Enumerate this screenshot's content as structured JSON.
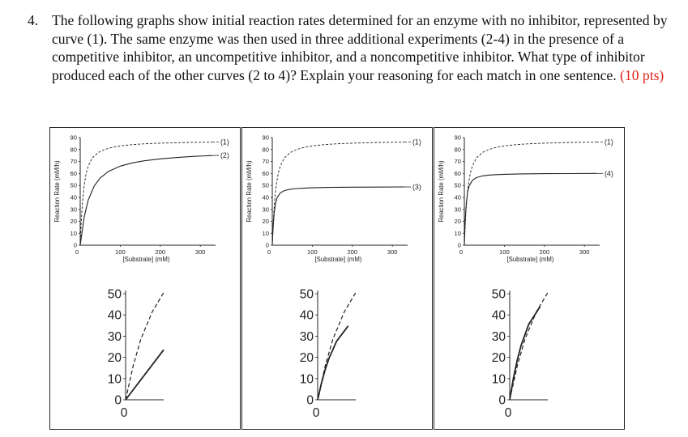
{
  "question": {
    "number": "4.",
    "text": "The following graphs show initial reaction rates determined for an enzyme with no inhibitor, represented by curve (1). The same enzyme was then used in three additional experiments (2-4) in the presence of a competitive inhibitor, an uncompetitive inhibitor, and a noncompetitive inhibitor. What type of inhibitor produced each of the other curves (2 to 4)? Explain your reasoning for each match in one sentence.",
    "points": "(10 pts)",
    "accent_color": "#e0241b"
  },
  "chart_data": [
    {
      "type": "line",
      "xlabel": "[Substrate] (mM)",
      "ylabel": "Reaction Rate (mM/h)",
      "xlim": [
        0,
        330
      ],
      "ylim": [
        0,
        90
      ],
      "x_ticks": [
        "0",
        "100",
        "200",
        "300"
      ],
      "y_ticks": [
        "0",
        "10",
        "20",
        "30",
        "40",
        "50",
        "60",
        "70",
        "80",
        "90"
      ],
      "series": [
        {
          "name": "(1)",
          "style": "dashed",
          "x": [
            0,
            2,
            4,
            7,
            10,
            15,
            20,
            30,
            45,
            60,
            80,
            100,
            130,
            160,
            200,
            240,
            280,
            330
          ],
          "y": [
            0,
            16.1,
            28.6,
            41.5,
            50.6,
            60.2,
            66.1,
            72.9,
            77.5,
            79.9,
            81.8,
            83.0,
            84.1,
            84.8,
            85.3,
            85.7,
            86.0,
            86.2
          ]
        },
        {
          "name": "(2)",
          "style": "solid",
          "x": [
            0,
            10,
            20,
            35,
            50,
            70,
            100,
            130,
            160,
            200,
            240,
            280,
            330
          ],
          "y": [
            0,
            23.6,
            37.8,
            49.6,
            56.2,
            61.6,
            66.1,
            68.8,
            70.6,
            72.2,
            73.3,
            74.2,
            75.0
          ]
        }
      ],
      "inset": {
        "x_ticks": [
          "0"
        ],
        "y_ticks": [
          "0",
          "10",
          "20",
          "30",
          "40",
          "50"
        ],
        "ylim": [
          0,
          50
        ]
      }
    },
    {
      "type": "line",
      "xlabel": "[Substrate] (mM)",
      "ylabel": "Reaction Rate (mM/h)",
      "xlim": [
        0,
        330
      ],
      "ylim": [
        0,
        90
      ],
      "x_ticks": [
        "0",
        "100",
        "200",
        "300"
      ],
      "y_ticks": [
        "0",
        "10",
        "20",
        "30",
        "40",
        "50",
        "60",
        "70",
        "80",
        "90"
      ],
      "series": [
        {
          "name": "(1)",
          "style": "dashed",
          "x": [
            0,
            2,
            4,
            7,
            10,
            15,
            20,
            30,
            45,
            60,
            80,
            100,
            130,
            160,
            200,
            240,
            280,
            330
          ],
          "y": [
            0,
            16.1,
            28.6,
            41.5,
            50.6,
            60.2,
            66.1,
            72.9,
            77.5,
            79.9,
            81.8,
            83.0,
            84.1,
            84.8,
            85.3,
            85.7,
            86.0,
            86.2
          ]
        },
        {
          "name": "(3)",
          "style": "solid",
          "x": [
            0,
            1,
            2,
            3,
            5,
            8,
            12,
            20,
            30,
            45,
            60,
            80,
            100,
            140,
            200,
            260,
            330
          ],
          "y": [
            0,
            7.9,
            14.4,
            19.7,
            27.7,
            34.8,
            39.7,
            43.8,
            45.6,
            46.8,
            47.4,
            47.8,
            48.0,
            48.3,
            48.5,
            48.6,
            48.7
          ]
        }
      ],
      "inset": {
        "x_ticks": [
          "0"
        ],
        "y_ticks": [
          "0",
          "10",
          "20",
          "30",
          "40",
          "50"
        ],
        "ylim": [
          0,
          50
        ]
      }
    },
    {
      "type": "line",
      "xlabel": "[Substrate] (mM)",
      "ylabel": "Reaction Rate (mM/h)",
      "xlim": [
        0,
        330
      ],
      "ylim": [
        0,
        90
      ],
      "x_ticks": [
        "0",
        "100",
        "200",
        "300"
      ],
      "y_ticks": [
        "0",
        "10",
        "20",
        "30",
        "40",
        "50",
        "60",
        "70",
        "80",
        "90"
      ],
      "series": [
        {
          "name": "(1)",
          "style": "dashed",
          "x": [
            0,
            2,
            4,
            7,
            10,
            15,
            20,
            30,
            45,
            60,
            80,
            100,
            130,
            160,
            200,
            240,
            280,
            330
          ],
          "y": [
            0,
            16.1,
            28.6,
            41.5,
            50.6,
            60.2,
            66.1,
            72.9,
            77.5,
            79.9,
            81.8,
            83.0,
            84.1,
            84.8,
            85.3,
            85.7,
            86.0,
            86.2
          ]
        },
        {
          "name": "(4)",
          "style": "solid",
          "x": [
            0,
            1,
            2,
            3,
            5,
            8,
            12,
            20,
            30,
            45,
            60,
            80,
            100,
            140,
            200,
            260,
            330
          ],
          "y": [
            0,
            10.5,
            18.9,
            25.7,
            35.6,
            44.0,
            49.5,
            54.3,
            56.5,
            57.9,
            58.6,
            59.0,
            59.3,
            59.6,
            59.8,
            59.9,
            60.0
          ]
        }
      ],
      "inset": {
        "x_ticks": [
          "0"
        ],
        "y_ticks": [
          "0",
          "10",
          "20",
          "30",
          "40",
          "50"
        ],
        "ylim": [
          0,
          50
        ]
      }
    }
  ]
}
